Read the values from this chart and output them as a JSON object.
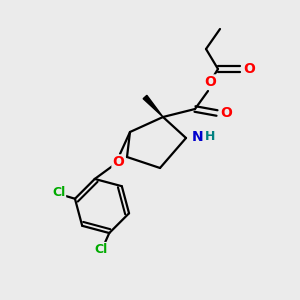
{
  "bg_color": "#ebebeb",
  "atom_colors": {
    "O": "#ff0000",
    "N": "#0000cd",
    "Cl": "#00aa00",
    "C": "#000000",
    "H": "#008080"
  },
  "bond_color": "#000000",
  "bond_width": 1.6,
  "figsize": [
    3.0,
    3.0
  ],
  "dpi": 100
}
